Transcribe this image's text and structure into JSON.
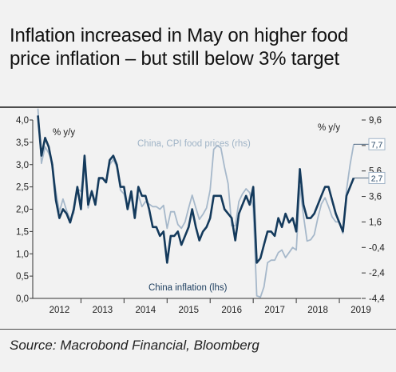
{
  "title": "Inflation increased in May on higher food price inflation – but still below 3% target",
  "source": "Source: Macrobond Financial, Bloomberg",
  "colors": {
    "china_inflation": "#143a5c",
    "cpi_food": "#a6b8ca",
    "background": "#f2f2f2"
  },
  "chart_data": {
    "type": "line",
    "grid": false,
    "x_axis": {
      "tick_labels": [
        "2012",
        "2013",
        "2014",
        "2015",
        "2016",
        "2017",
        "2018",
        "2019"
      ],
      "range": [
        2011.88,
        2019.5
      ]
    },
    "y_left": {
      "unit_label": "% y/y",
      "range": [
        0,
        4.0
      ],
      "tick_labels": [
        "0,0",
        "0,5",
        "1,0",
        "1,5",
        "2,0",
        "2,5",
        "3,0",
        "3,5",
        "4,0"
      ]
    },
    "y_right": {
      "unit_label": "% y/y",
      "range": [
        -4.4,
        9.6
      ],
      "tick_labels": [
        "-4,4",
        "-2,4",
        "-0,4",
        "1,6",
        "3,6",
        "5,6",
        "7,6",
        "9,6"
      ]
    },
    "callouts": [
      {
        "series": "cpi_food",
        "text": "7,7",
        "value": 7.7
      },
      {
        "series": "china_inflation",
        "text": "2,7",
        "value": 2.7
      }
    ],
    "series": [
      {
        "key": "china_inflation",
        "name": "China inflation (lhs)",
        "axis": "left",
        "x": [
          2012.0,
          2012.083,
          2012.167,
          2012.25,
          2012.333,
          2012.417,
          2012.5,
          2012.583,
          2012.667,
          2012.75,
          2012.833,
          2012.917,
          2013.0,
          2013.083,
          2013.167,
          2013.25,
          2013.333,
          2013.417,
          2013.5,
          2013.583,
          2013.667,
          2013.75,
          2013.833,
          2013.917,
          2014.0,
          2014.083,
          2014.167,
          2014.25,
          2014.333,
          2014.417,
          2014.5,
          2014.583,
          2014.667,
          2014.75,
          2014.833,
          2014.917,
          2015.0,
          2015.083,
          2015.167,
          2015.25,
          2015.333,
          2015.417,
          2015.5,
          2015.583,
          2015.667,
          2015.75,
          2015.833,
          2015.917,
          2016.0,
          2016.083,
          2016.167,
          2016.25,
          2016.333,
          2016.417,
          2016.5,
          2016.583,
          2016.667,
          2016.75,
          2016.833,
          2016.917,
          2017.0,
          2017.083,
          2017.167,
          2017.25,
          2017.333,
          2017.417,
          2017.5,
          2017.583,
          2017.667,
          2017.75,
          2017.833,
          2017.917,
          2018.0,
          2018.083,
          2018.167,
          2018.25,
          2018.333,
          2018.417,
          2018.5,
          2018.583,
          2018.667,
          2018.75,
          2018.833,
          2018.917,
          2019.0,
          2019.083,
          2019.167,
          2019.25,
          2019.333
        ],
        "values": [
          4.1,
          3.2,
          3.6,
          3.4,
          3.0,
          2.2,
          1.8,
          2.0,
          1.9,
          1.7,
          2.0,
          2.5,
          2.0,
          3.2,
          2.1,
          2.4,
          2.1,
          2.7,
          2.7,
          2.6,
          3.1,
          3.2,
          3.0,
          2.5,
          2.5,
          2.0,
          2.4,
          1.8,
          2.5,
          2.3,
          2.3,
          2.0,
          1.6,
          1.6,
          1.4,
          1.5,
          0.8,
          1.4,
          1.4,
          1.5,
          1.2,
          1.4,
          1.6,
          2.0,
          1.6,
          1.3,
          1.5,
          1.6,
          1.8,
          2.3,
          2.3,
          2.3,
          2.0,
          1.9,
          1.8,
          1.3,
          1.9,
          2.1,
          2.3,
          2.1,
          2.5,
          0.8,
          0.9,
          1.2,
          1.5,
          1.5,
          1.4,
          1.8,
          1.6,
          1.9,
          1.7,
          1.8,
          1.5,
          2.9,
          2.1,
          1.8,
          1.8,
          1.9,
          2.1,
          2.3,
          2.5,
          2.5,
          2.2,
          1.9,
          1.7,
          1.5,
          2.3,
          2.5,
          2.7
        ]
      },
      {
        "key": "cpi_food",
        "name": "China, CPI food prices (rhs)",
        "axis": "right",
        "x": [
          2012.0,
          2012.083,
          2012.167,
          2012.25,
          2012.333,
          2012.417,
          2012.5,
          2012.583,
          2012.667,
          2012.75,
          2012.833,
          2012.917,
          2013.0,
          2013.083,
          2013.167,
          2013.25,
          2013.333,
          2013.417,
          2013.5,
          2013.583,
          2013.667,
          2013.75,
          2013.833,
          2013.917,
          2014.0,
          2014.083,
          2014.167,
          2014.25,
          2014.333,
          2014.417,
          2014.5,
          2014.583,
          2014.667,
          2014.75,
          2014.833,
          2014.917,
          2015.0,
          2015.083,
          2015.167,
          2015.25,
          2015.333,
          2015.417,
          2015.5,
          2015.583,
          2015.667,
          2015.75,
          2015.833,
          2015.917,
          2016.0,
          2016.083,
          2016.167,
          2016.25,
          2016.333,
          2016.417,
          2016.5,
          2016.583,
          2016.667,
          2016.75,
          2016.833,
          2016.917,
          2017.0,
          2017.083,
          2017.167,
          2017.25,
          2017.333,
          2017.417,
          2017.5,
          2017.583,
          2017.667,
          2017.75,
          2017.833,
          2017.917,
          2018.0,
          2018.083,
          2018.167,
          2018.25,
          2018.333,
          2018.417,
          2018.5,
          2018.583,
          2018.667,
          2018.75,
          2018.833,
          2018.917,
          2019.0,
          2019.083,
          2019.167,
          2019.25,
          2019.333
        ],
        "values": [
          10.5,
          6.2,
          7.5,
          7.0,
          6.3,
          4.0,
          2.4,
          3.4,
          2.5,
          1.8,
          2.3,
          4.2,
          4.0,
          6.0,
          2.7,
          4.1,
          3.2,
          4.9,
          5.0,
          4.7,
          6.1,
          6.5,
          5.9,
          4.1,
          3.8,
          2.7,
          3.5,
          1.9,
          3.7,
          2.8,
          3.2,
          3.0,
          2.8,
          2.8,
          2.6,
          2.9,
          1.1,
          2.4,
          2.4,
          1.4,
          1.1,
          1.6,
          2.7,
          3.7,
          2.7,
          1.8,
          2.2,
          2.7,
          4.1,
          7.3,
          7.6,
          7.4,
          5.9,
          4.6,
          1.3,
          1.3,
          3.2,
          3.8,
          4.2,
          3.9,
          2.7,
          -4.2,
          -4.3,
          -3.5,
          -1.6,
          -1.4,
          -1.4,
          -0.8,
          -0.6,
          -1.2,
          -0.8,
          -0.4,
          -0.6,
          4.4,
          2.1,
          0.1,
          0.2,
          0.6,
          1.9,
          3.0,
          3.5,
          2.8,
          2.0,
          1.6,
          1.6,
          0.7,
          4.1,
          6.1,
          7.7
        ]
      }
    ]
  }
}
